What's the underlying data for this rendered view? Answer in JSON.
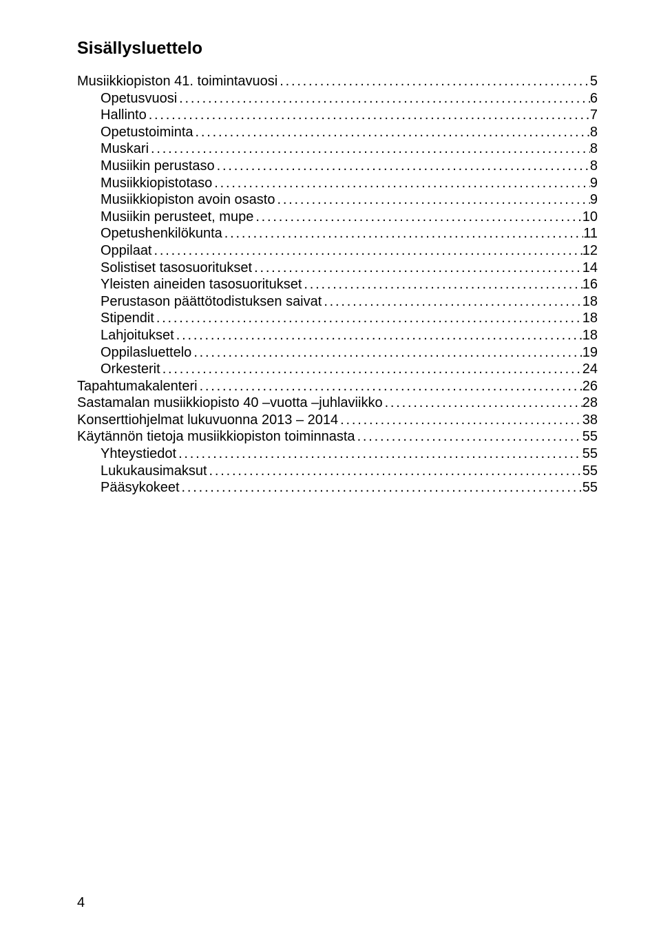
{
  "title": "Sisällysluettelo",
  "toc": [
    {
      "label": "Musiikkiopiston 41. toimintavuosi",
      "page": "5",
      "indent": false
    },
    {
      "label": "Opetusvuosi",
      "page": "6",
      "indent": true
    },
    {
      "label": "Hallinto",
      "page": "7",
      "indent": true
    },
    {
      "label": "Opetustoiminta",
      "page": "8",
      "indent": true
    },
    {
      "label": "Muskari",
      "page": "8",
      "indent": true
    },
    {
      "label": "Musiikin perustaso",
      "page": "8",
      "indent": true
    },
    {
      "label": "Musiikkiopistotaso",
      "page": "9",
      "indent": true
    },
    {
      "label": "Musiikkiopiston avoin osasto",
      "page": "9",
      "indent": true
    },
    {
      "label": "Musiikin perusteet, mupe",
      "page": "10",
      "indent": true
    },
    {
      "label": "Opetushenkilökunta",
      "page": "11",
      "indent": true
    },
    {
      "label": "Oppilaat",
      "page": "12",
      "indent": true
    },
    {
      "label": "Solistiset tasosuoritukset",
      "page": "14",
      "indent": true
    },
    {
      "label": "Yleisten aineiden tasosuoritukset",
      "page": "16",
      "indent": true
    },
    {
      "label": "Perustason päättötodistuksen saivat",
      "page": "18",
      "indent": true
    },
    {
      "label": "Stipendit",
      "page": "18",
      "indent": true
    },
    {
      "label": "Lahjoitukset",
      "page": "18",
      "indent": true
    },
    {
      "label": "Oppilasluettelo",
      "page": "19",
      "indent": true
    },
    {
      "label": "Orkesterit",
      "page": "24",
      "indent": true
    },
    {
      "label": "Tapahtumakalenteri",
      "page": "26",
      "indent": false
    },
    {
      "label": "Sastamalan musiikkiopisto 40 –vuotta –juhlaviikko",
      "page": "28",
      "indent": false
    },
    {
      "label": "Konserttiohjelmat lukuvuonna 2013 – 2014",
      "page": "38",
      "indent": false
    },
    {
      "label": "Käytännön tietoja musiikkiopiston toiminnasta",
      "page": "55",
      "indent": false
    },
    {
      "label": "Yhteystiedot",
      "page": "55",
      "indent": true
    },
    {
      "label": "Lukukausimaksut",
      "page": "55",
      "indent": true
    },
    {
      "label": "Pääsykokeet",
      "page": "55",
      "indent": true
    }
  ],
  "footer_page_number": "4"
}
